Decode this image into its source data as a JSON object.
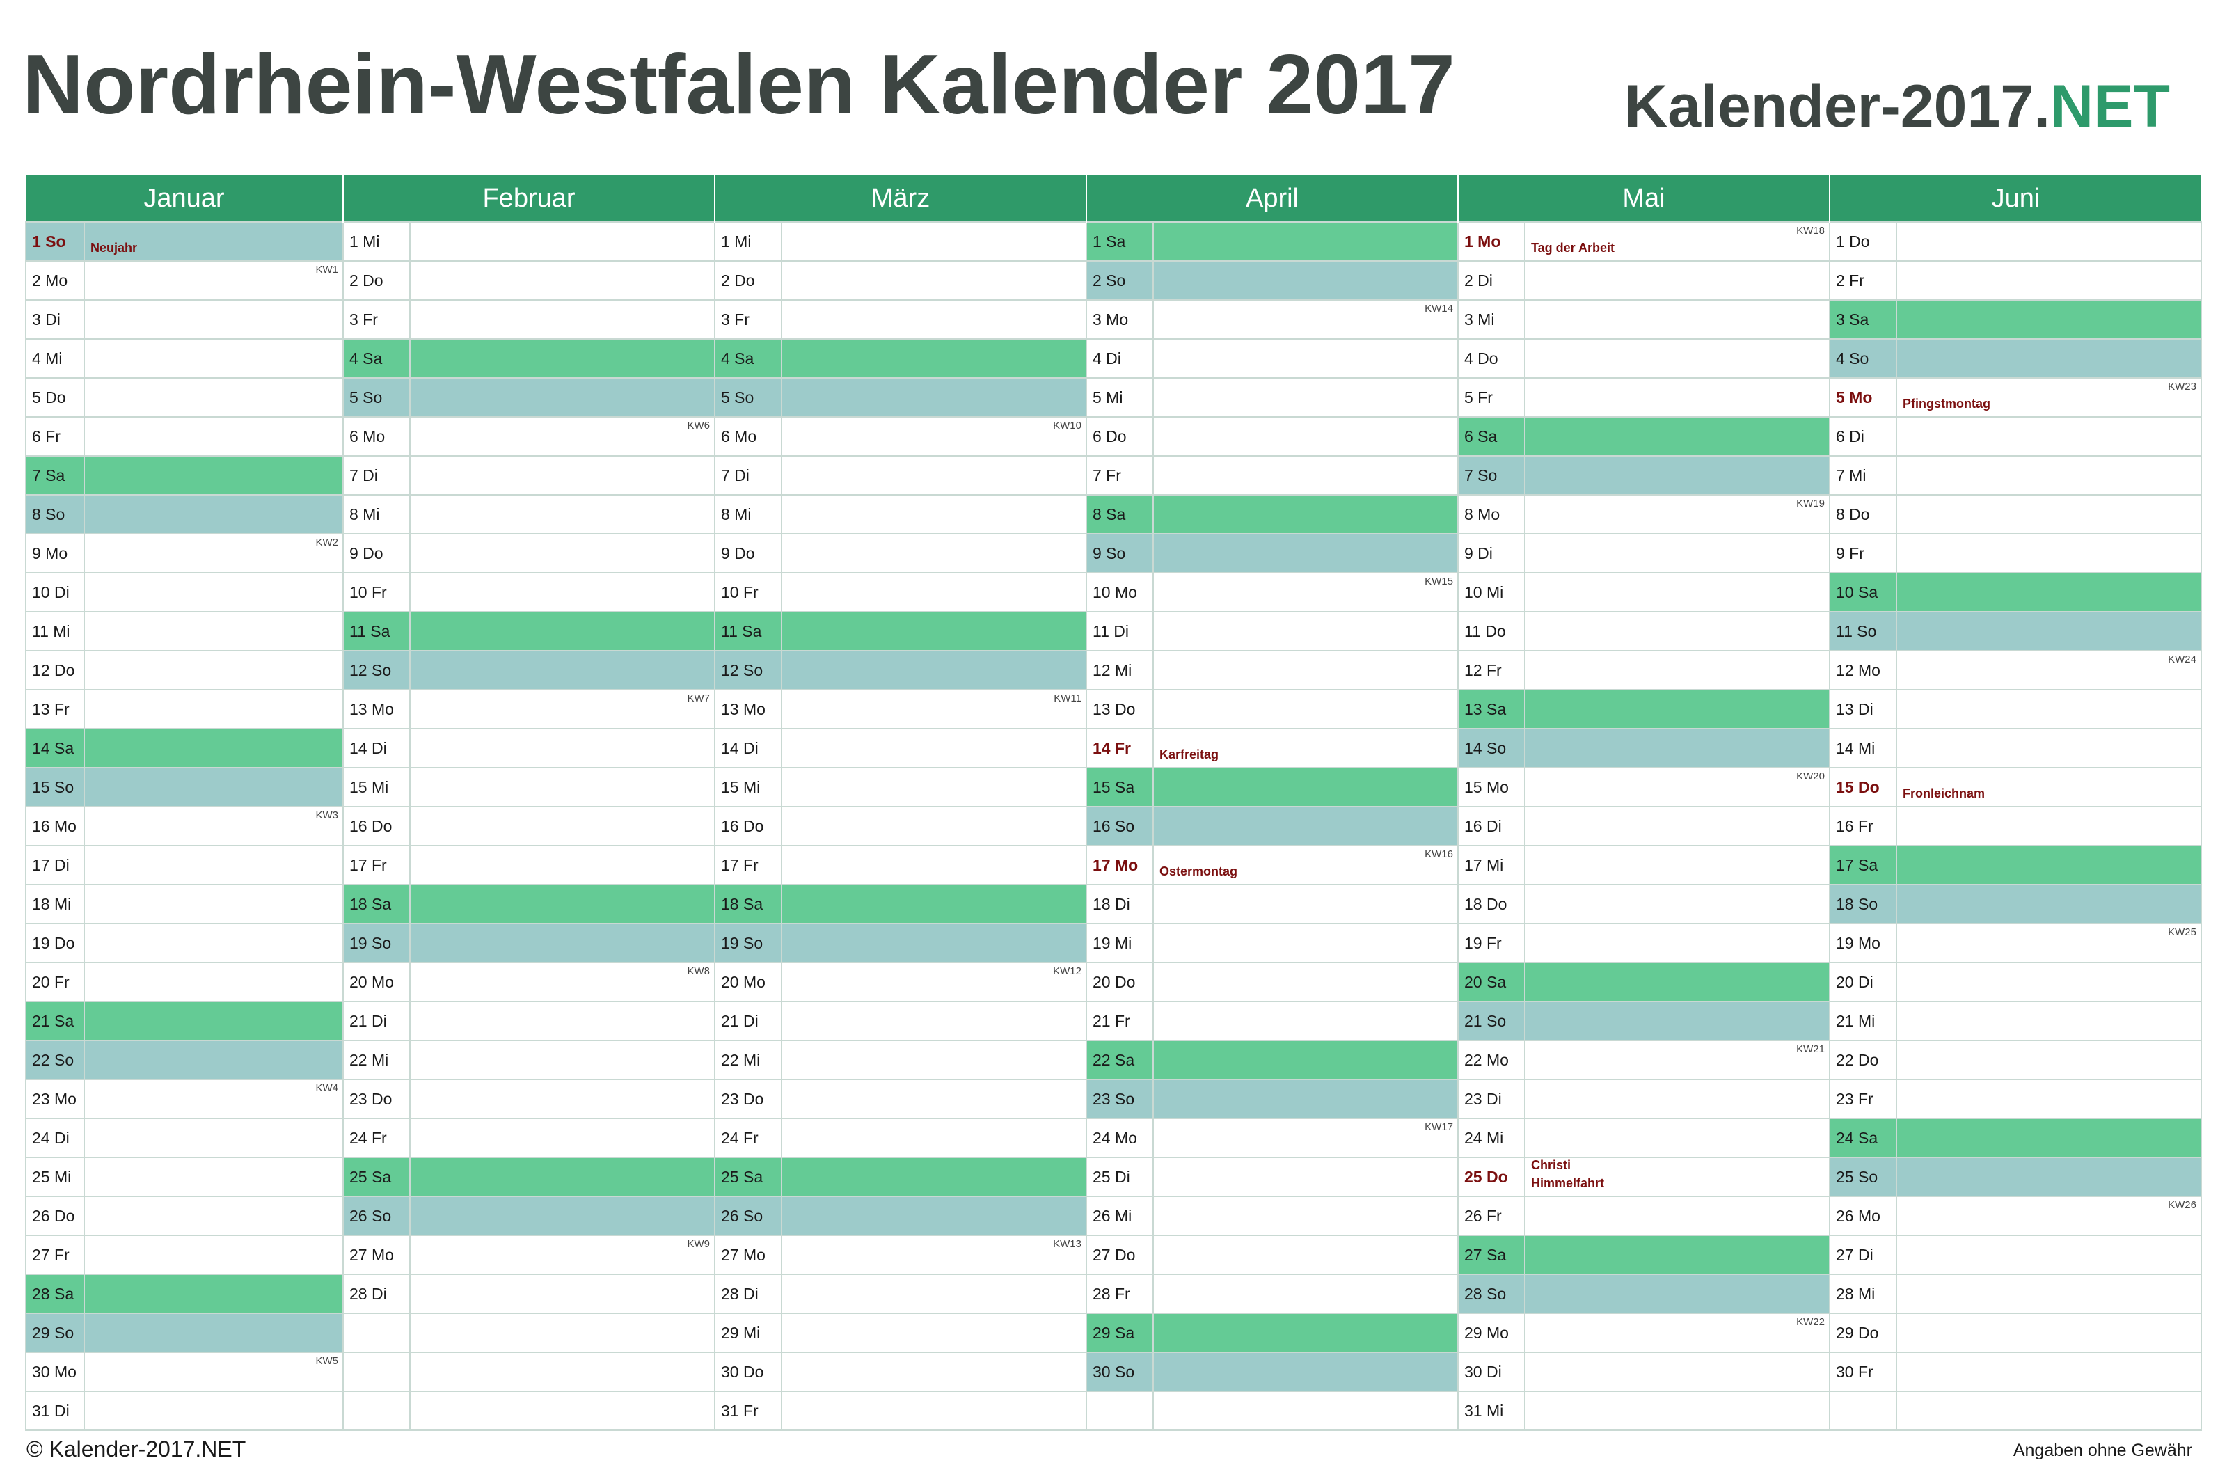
{
  "title": "Nordrhein-Westfalen Kalender 2017",
  "brand": {
    "main": "Kalender-2017.",
    "suffix": "NET"
  },
  "colors": {
    "header": "#2f9a69",
    "saturday": "#64cb95",
    "sunday": "#9dcbca",
    "holiday_text": "#7b0f0f",
    "title": "#3d4542",
    "brand_accent": "#2e9a6b"
  },
  "months": [
    {
      "name": "Januar",
      "days": [
        {
          "label": "1 So",
          "type": "so",
          "holiday": "Neujahr"
        },
        {
          "label": "2 Mo",
          "kw": "KW1"
        },
        {
          "label": "3 Di"
        },
        {
          "label": "4 Mi"
        },
        {
          "label": "5 Do"
        },
        {
          "label": "6 Fr"
        },
        {
          "label": "7 Sa",
          "type": "sa"
        },
        {
          "label": "8 So",
          "type": "so"
        },
        {
          "label": "9 Mo",
          "kw": "KW2"
        },
        {
          "label": "10 Di"
        },
        {
          "label": "11 Mi"
        },
        {
          "label": "12 Do"
        },
        {
          "label": "13 Fr"
        },
        {
          "label": "14 Sa",
          "type": "sa"
        },
        {
          "label": "15 So",
          "type": "so"
        },
        {
          "label": "16 Mo",
          "kw": "KW3"
        },
        {
          "label": "17 Di"
        },
        {
          "label": "18 Mi"
        },
        {
          "label": "19 Do"
        },
        {
          "label": "20 Fr"
        },
        {
          "label": "21 Sa",
          "type": "sa"
        },
        {
          "label": "22 So",
          "type": "so"
        },
        {
          "label": "23 Mo",
          "kw": "KW4"
        },
        {
          "label": "24 Di"
        },
        {
          "label": "25 Mi"
        },
        {
          "label": "26 Do"
        },
        {
          "label": "27 Fr"
        },
        {
          "label": "28 Sa",
          "type": "sa"
        },
        {
          "label": "29 So",
          "type": "so"
        },
        {
          "label": "30 Mo",
          "kw": "KW5"
        },
        {
          "label": "31 Di"
        }
      ]
    },
    {
      "name": "Februar",
      "days": [
        {
          "label": "1 Mi"
        },
        {
          "label": "2 Do"
        },
        {
          "label": "3 Fr"
        },
        {
          "label": "4 Sa",
          "type": "sa"
        },
        {
          "label": "5 So",
          "type": "so"
        },
        {
          "label": "6 Mo",
          "kw": "KW6"
        },
        {
          "label": "7 Di"
        },
        {
          "label": "8 Mi"
        },
        {
          "label": "9 Do"
        },
        {
          "label": "10 Fr"
        },
        {
          "label": "11 Sa",
          "type": "sa"
        },
        {
          "label": "12 So",
          "type": "so"
        },
        {
          "label": "13 Mo",
          "kw": "KW7"
        },
        {
          "label": "14 Di"
        },
        {
          "label": "15 Mi"
        },
        {
          "label": "16 Do"
        },
        {
          "label": "17 Fr"
        },
        {
          "label": "18 Sa",
          "type": "sa"
        },
        {
          "label": "19 So",
          "type": "so"
        },
        {
          "label": "20 Mo",
          "kw": "KW8"
        },
        {
          "label": "21 Di"
        },
        {
          "label": "22 Mi"
        },
        {
          "label": "23 Do"
        },
        {
          "label": "24 Fr"
        },
        {
          "label": "25 Sa",
          "type": "sa"
        },
        {
          "label": "26 So",
          "type": "so"
        },
        {
          "label": "27 Mo",
          "kw": "KW9"
        },
        {
          "label": "28 Di"
        }
      ]
    },
    {
      "name": "März",
      "days": [
        {
          "label": "1 Mi"
        },
        {
          "label": "2 Do"
        },
        {
          "label": "3 Fr"
        },
        {
          "label": "4 Sa",
          "type": "sa"
        },
        {
          "label": "5 So",
          "type": "so"
        },
        {
          "label": "6 Mo",
          "kw": "KW10"
        },
        {
          "label": "7 Di"
        },
        {
          "label": "8 Mi"
        },
        {
          "label": "9 Do"
        },
        {
          "label": "10 Fr"
        },
        {
          "label": "11 Sa",
          "type": "sa"
        },
        {
          "label": "12 So",
          "type": "so"
        },
        {
          "label": "13 Mo",
          "kw": "KW11"
        },
        {
          "label": "14 Di"
        },
        {
          "label": "15 Mi"
        },
        {
          "label": "16 Do"
        },
        {
          "label": "17 Fr"
        },
        {
          "label": "18 Sa",
          "type": "sa"
        },
        {
          "label": "19 So",
          "type": "so"
        },
        {
          "label": "20 Mo",
          "kw": "KW12"
        },
        {
          "label": "21 Di"
        },
        {
          "label": "22 Mi"
        },
        {
          "label": "23 Do"
        },
        {
          "label": "24 Fr"
        },
        {
          "label": "25 Sa",
          "type": "sa"
        },
        {
          "label": "26 So",
          "type": "so"
        },
        {
          "label": "27 Mo",
          "kw": "KW13"
        },
        {
          "label": "28 Di"
        },
        {
          "label": "29 Mi"
        },
        {
          "label": "30 Do"
        },
        {
          "label": "31 Fr"
        }
      ]
    },
    {
      "name": "April",
      "days": [
        {
          "label": "1 Sa",
          "type": "sa"
        },
        {
          "label": "2 So",
          "type": "so"
        },
        {
          "label": "3 Mo",
          "kw": "KW14"
        },
        {
          "label": "4 Di"
        },
        {
          "label": "5 Mi"
        },
        {
          "label": "6 Do"
        },
        {
          "label": "7 Fr"
        },
        {
          "label": "8 Sa",
          "type": "sa"
        },
        {
          "label": "9 So",
          "type": "so"
        },
        {
          "label": "10 Mo",
          "kw": "KW15"
        },
        {
          "label": "11 Di"
        },
        {
          "label": "12 Mi"
        },
        {
          "label": "13 Do"
        },
        {
          "label": "14 Fr",
          "holiday": "Karfreitag"
        },
        {
          "label": "15 Sa",
          "type": "sa"
        },
        {
          "label": "16 So",
          "type": "so"
        },
        {
          "label": "17 Mo",
          "kw": "KW16",
          "holiday": "Ostermontag"
        },
        {
          "label": "18 Di"
        },
        {
          "label": "19 Mi"
        },
        {
          "label": "20 Do"
        },
        {
          "label": "21 Fr"
        },
        {
          "label": "22 Sa",
          "type": "sa"
        },
        {
          "label": "23 So",
          "type": "so"
        },
        {
          "label": "24 Mo",
          "kw": "KW17"
        },
        {
          "label": "25 Di"
        },
        {
          "label": "26 Mi"
        },
        {
          "label": "27 Do"
        },
        {
          "label": "28 Fr"
        },
        {
          "label": "29 Sa",
          "type": "sa"
        },
        {
          "label": "30 So",
          "type": "so"
        }
      ]
    },
    {
      "name": "Mai",
      "days": [
        {
          "label": "1 Mo",
          "kw": "KW18",
          "holiday": "Tag der Arbeit"
        },
        {
          "label": "2 Di"
        },
        {
          "label": "3 Mi"
        },
        {
          "label": "4 Do"
        },
        {
          "label": "5 Fr"
        },
        {
          "label": "6 Sa",
          "type": "sa"
        },
        {
          "label": "7 So",
          "type": "so"
        },
        {
          "label": "8 Mo",
          "kw": "KW19"
        },
        {
          "label": "9 Di"
        },
        {
          "label": "10 Mi"
        },
        {
          "label": "11 Do"
        },
        {
          "label": "12 Fr"
        },
        {
          "label": "13 Sa",
          "type": "sa"
        },
        {
          "label": "14 So",
          "type": "so"
        },
        {
          "label": "15 Mo",
          "kw": "KW20"
        },
        {
          "label": "16 Di"
        },
        {
          "label": "17 Mi"
        },
        {
          "label": "18 Do"
        },
        {
          "label": "19 Fr"
        },
        {
          "label": "20 Sa",
          "type": "sa"
        },
        {
          "label": "21 So",
          "type": "so"
        },
        {
          "label": "22 Mo",
          "kw": "KW21"
        },
        {
          "label": "23 Di"
        },
        {
          "label": "24 Mi"
        },
        {
          "label": "25 Do",
          "holiday": "Christi Himmelfahrt"
        },
        {
          "label": "26 Fr"
        },
        {
          "label": "27 Sa",
          "type": "sa"
        },
        {
          "label": "28 So",
          "type": "so"
        },
        {
          "label": "29 Mo",
          "kw": "KW22"
        },
        {
          "label": "30 Di"
        },
        {
          "label": "31 Mi"
        }
      ]
    },
    {
      "name": "Juni",
      "days": [
        {
          "label": "1 Do"
        },
        {
          "label": "2 Fr"
        },
        {
          "label": "3 Sa",
          "type": "sa"
        },
        {
          "label": "4 So",
          "type": "so"
        },
        {
          "label": "5 Mo",
          "kw": "KW23",
          "holiday": "Pfingstmontag"
        },
        {
          "label": "6 Di"
        },
        {
          "label": "7 Mi"
        },
        {
          "label": "8 Do"
        },
        {
          "label": "9 Fr"
        },
        {
          "label": "10 Sa",
          "type": "sa"
        },
        {
          "label": "11 So",
          "type": "so"
        },
        {
          "label": "12 Mo",
          "kw": "KW24"
        },
        {
          "label": "13 Di"
        },
        {
          "label": "14 Mi"
        },
        {
          "label": "15 Do",
          "holiday": "Fronleichnam"
        },
        {
          "label": "16 Fr"
        },
        {
          "label": "17 Sa",
          "type": "sa"
        },
        {
          "label": "18 So",
          "type": "so"
        },
        {
          "label": "19 Mo",
          "kw": "KW25"
        },
        {
          "label": "20 Di"
        },
        {
          "label": "21 Mi"
        },
        {
          "label": "22 Do"
        },
        {
          "label": "23 Fr"
        },
        {
          "label": "24 Sa",
          "type": "sa"
        },
        {
          "label": "25 So",
          "type": "so"
        },
        {
          "label": "26 Mo",
          "kw": "KW26"
        },
        {
          "label": "27 Di"
        },
        {
          "label": "28 Mi"
        },
        {
          "label": "29 Do"
        },
        {
          "label": "30 Fr"
        }
      ]
    }
  ],
  "footer": {
    "copyright": "© Kalender-2017.NET",
    "disclaimer": "Angaben ohne Gewähr"
  }
}
